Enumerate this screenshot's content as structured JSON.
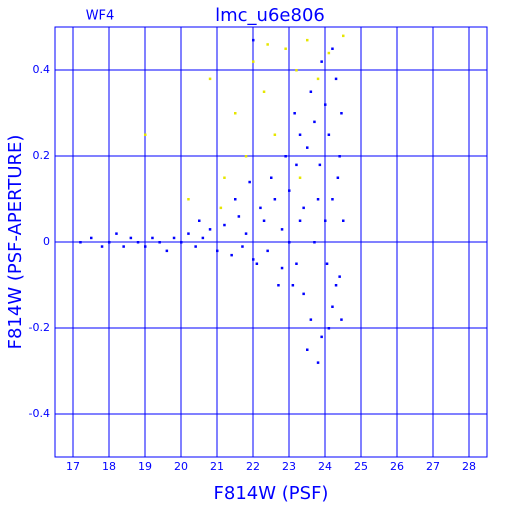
{
  "chart_data": {
    "type": "scatter",
    "title": "lmc_u6e806",
    "subtitle": "WF4",
    "x_label": "F814W (PSF)",
    "y_label": "F814W (PSF-APERTURE)",
    "xlim": [
      16.5,
      28.5
    ],
    "ylim": [
      -0.5,
      0.5
    ],
    "xticks": [
      17,
      18,
      19,
      20,
      21,
      22,
      23,
      24,
      25,
      26,
      27,
      28
    ],
    "yticks": [
      -0.4,
      -0.2,
      0,
      0.2,
      0.4
    ],
    "grid": true,
    "axis_color": "#0000ff",
    "series": [
      {
        "color": "#0000ff",
        "x": [
          17.2,
          17.5,
          17.8,
          18.0,
          18.2,
          18.4,
          18.6,
          18.8,
          19.0,
          19.2,
          19.4,
          19.6,
          19.8,
          20.0,
          20.2,
          20.4,
          20.6,
          20.8,
          21.0,
          21.2,
          21.4,
          21.6,
          21.8,
          22.0,
          22.2,
          22.4,
          22.6,
          22.8,
          23.0,
          23.1,
          23.2,
          23.3,
          23.4,
          23.5,
          23.6,
          23.7,
          23.8,
          23.9,
          24.0,
          24.05,
          24.1,
          24.2,
          24.3,
          24.35,
          24.4,
          24.45,
          24.5,
          22.5,
          22.9,
          23.3,
          23.6,
          23.9,
          24.2,
          21.5,
          21.9,
          22.7,
          23.5,
          23.8,
          24.1,
          24.3,
          22.3,
          22.1,
          23.0,
          23.2,
          23.7,
          24.0,
          24.4,
          20.5,
          22.0,
          23.4,
          24.2,
          23.85,
          22.8,
          21.7,
          24.45,
          23.15
        ],
        "y": [
          0.0,
          0.01,
          -0.01,
          0.0,
          0.02,
          -0.01,
          0.01,
          0.0,
          -0.01,
          0.01,
          0.0,
          -0.02,
          0.01,
          0.0,
          0.02,
          -0.01,
          0.01,
          0.03,
          -0.02,
          0.04,
          -0.03,
          0.06,
          0.02,
          -0.04,
          0.08,
          -0.02,
          0.1,
          -0.06,
          0.12,
          -0.1,
          0.18,
          0.05,
          -0.12,
          0.22,
          -0.18,
          0.28,
          0.1,
          -0.22,
          0.32,
          -0.05,
          0.25,
          -0.15,
          0.38,
          0.15,
          -0.08,
          0.3,
          0.05,
          0.15,
          0.2,
          0.25,
          0.35,
          0.42,
          0.45,
          0.1,
          0.14,
          -0.1,
          -0.25,
          -0.28,
          -0.2,
          -0.1,
          0.05,
          -0.05,
          0.0,
          -0.05,
          0.0,
          0.05,
          0.2,
          0.05,
          0.47,
          0.08,
          0.1,
          0.18,
          0.03,
          -0.01,
          -0.18,
          0.3
        ]
      },
      {
        "color": "#e6e600",
        "x": [
          19.0,
          20.2,
          20.8,
          21.2,
          21.5,
          21.8,
          22.0,
          22.3,
          22.6,
          22.9,
          23.2,
          23.5,
          23.8,
          24.1,
          24.5,
          22.4,
          21.1,
          23.3
        ],
        "y": [
          0.25,
          0.1,
          0.38,
          0.15,
          0.3,
          0.2,
          0.42,
          0.35,
          0.25,
          0.45,
          0.4,
          0.47,
          0.38,
          0.44,
          0.48,
          0.46,
          0.08,
          0.15
        ]
      }
    ]
  }
}
